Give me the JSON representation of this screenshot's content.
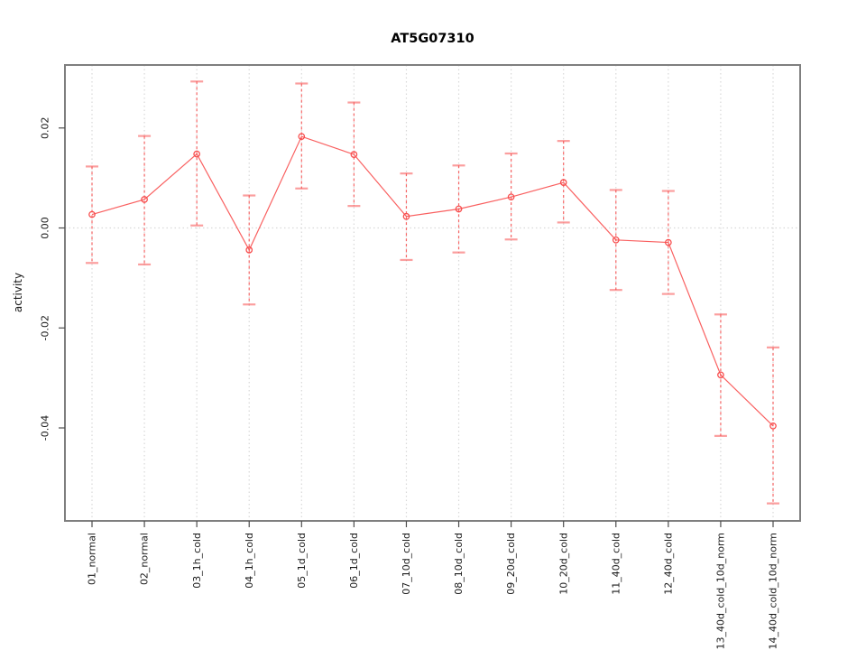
{
  "chart": {
    "title": "AT5G07310",
    "ylabel": "activity"
  },
  "chart_data": {
    "type": "line",
    "title": "AT5G07310",
    "xlabel": "",
    "ylabel": "activity",
    "categories": [
      "01_normal",
      "02_normal",
      "03_1h_cold",
      "04_1h_cold",
      "05_1d_cold",
      "06_1d_cold",
      "07_10d_cold",
      "08_10d_cold",
      "09_20d_cold",
      "10_20d_cold",
      "11_40d_cold",
      "12_40d_cold",
      "13_40d_cold_10d_norm",
      "14_40d_cold_10d_norm"
    ],
    "series": [
      {
        "name": "activity",
        "marker": "open-circle",
        "values": [
          0.0027,
          0.0057,
          0.0148,
          -0.0044,
          0.0183,
          0.0147,
          0.0023,
          0.0038,
          0.0062,
          0.0091,
          -0.0024,
          -0.0029,
          -0.0294,
          -0.0396
        ],
        "ci_high": [
          0.0123,
          0.0184,
          0.0293,
          0.0065,
          0.0289,
          0.0251,
          0.0109,
          0.0125,
          0.0149,
          0.0174,
          0.0076,
          0.0074,
          -0.0173,
          -0.0239
        ],
        "ci_low": [
          -0.007,
          -0.0073,
          0.0005,
          -0.0153,
          0.0079,
          0.0044,
          -0.0064,
          -0.0049,
          -0.0023,
          0.0011,
          -0.0124,
          -0.0132,
          -0.0416,
          -0.0551
        ]
      }
    ],
    "ylim": [
      -0.0586,
      0.0326
    ],
    "yticks": [
      0.02,
      0,
      -0.02,
      -0.04
    ],
    "ytick_labels": [
      "0.02",
      "0.00",
      "-0.02",
      "-0.04"
    ],
    "grid": {
      "vertical_gridlines": true,
      "horizontal_line_at": 0,
      "style": "dotted"
    },
    "legend": "none",
    "colors": {
      "series": "#f84f4f",
      "error_cap": "#f84f4f",
      "grid": "#d8d8d8",
      "box": "#7f7f7f",
      "tick": "#4d4d4d",
      "text": "#1a1a1a",
      "background": "#ffffff"
    }
  }
}
